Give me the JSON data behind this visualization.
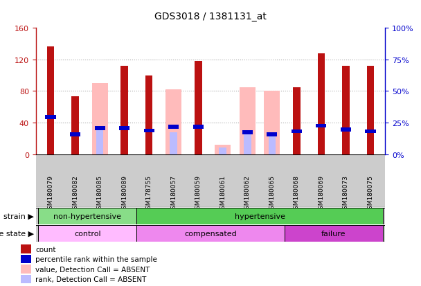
{
  "title": "GDS3018 / 1381131_at",
  "samples": [
    "GSM180079",
    "GSM180082",
    "GSM180085",
    "GSM180089",
    "GSM178755",
    "GSM180057",
    "GSM180059",
    "GSM180061",
    "GSM180062",
    "GSM180065",
    "GSM180068",
    "GSM180069",
    "GSM180073",
    "GSM180075"
  ],
  "count_values": [
    137,
    73,
    0,
    112,
    100,
    0,
    118,
    0,
    0,
    0,
    85,
    128,
    112,
    112
  ],
  "absent_value_values": [
    0,
    0,
    90,
    0,
    0,
    82,
    0,
    12,
    85,
    80,
    0,
    0,
    0,
    0
  ],
  "percentile_values": [
    47,
    25,
    33,
    33,
    30,
    35,
    35,
    0,
    28,
    25,
    29,
    36,
    31,
    29
  ],
  "absent_rank_values": [
    0,
    0,
    33,
    0,
    0,
    28,
    0,
    8,
    28,
    26,
    0,
    0,
    0,
    0
  ],
  "strain_groups": [
    {
      "label": "non-hypertensive",
      "start": 0,
      "end": 4,
      "color": "#88dd88"
    },
    {
      "label": "hypertensive",
      "start": 4,
      "end": 14,
      "color": "#55cc55"
    }
  ],
  "disease_groups": [
    {
      "label": "control",
      "start": 0,
      "end": 4,
      "color": "#ffbbff"
    },
    {
      "label": "compensated",
      "start": 4,
      "end": 10,
      "color": "#ee88ee"
    },
    {
      "label": "failure",
      "start": 10,
      "end": 14,
      "color": "#cc44cc"
    }
  ],
  "ylim_left": [
    0,
    160
  ],
  "ylim_right": [
    0,
    100
  ],
  "yticks_left": [
    0,
    40,
    80,
    120,
    160
  ],
  "yticks_right": [
    0,
    25,
    50,
    75,
    100
  ],
  "ytick_labels_left": [
    "0",
    "40",
    "80",
    "120",
    "160"
  ],
  "ytick_labels_right": [
    "0%",
    "25%",
    "50%",
    "75%",
    "100%"
  ],
  "color_count": "#bb1111",
  "color_percentile": "#0000cc",
  "color_absent_value": "#ffbbbb",
  "color_absent_rank": "#bbbbff",
  "background_color": "#ffffff",
  "grid_color": "#aaaaaa",
  "label_area_color": "#cccccc",
  "strain_label": "strain",
  "disease_label": "disease state"
}
